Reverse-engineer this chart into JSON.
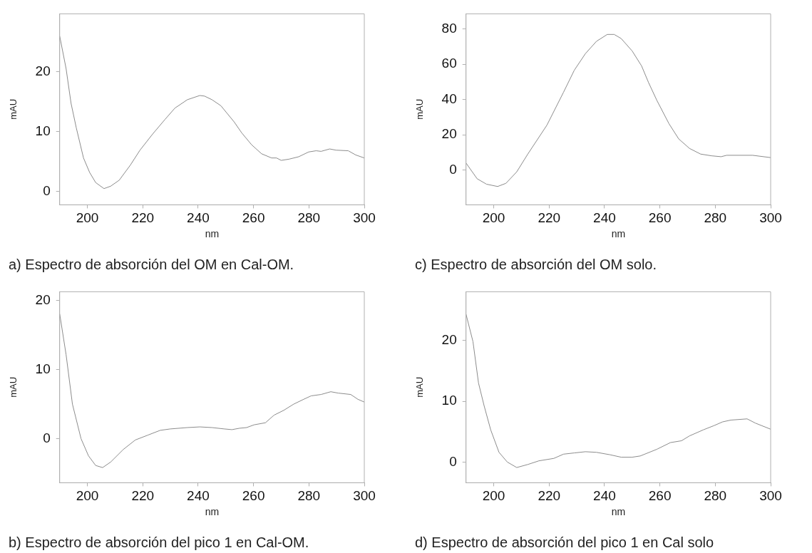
{
  "chart_data": [
    {
      "type": "line",
      "title": "a) Espectro de absorción del OM en Cal-OM.",
      "xlabel": "nm",
      "ylabel": "mAU",
      "xlim": [
        190,
        300
      ],
      "ylim": [
        -2.2,
        29.6
      ],
      "xticks": [
        200,
        220,
        240,
        260,
        280,
        300
      ],
      "yticks": [
        0,
        10,
        20
      ],
      "grid": false,
      "marker": "none",
      "x": [
        190,
        192.3,
        194.1,
        196,
        198.6,
        200.8,
        203,
        206,
        208.4,
        211.5,
        215.5,
        219,
        223.6,
        228,
        231.6,
        236.1,
        240.6,
        242.3,
        245,
        248.2,
        253,
        255.7,
        259.3,
        262.9,
        266.5,
        268.3,
        270,
        272.8,
        276.3,
        279.9,
        282.6,
        284.4,
        287.5,
        289.8,
        294.2,
        296.9,
        300
      ],
      "series": [
        {
          "color": "#8c8c8c",
          "values": [
            25.9,
            20.5,
            14.7,
            10.6,
            5.6,
            3.2,
            1.5,
            0.5,
            0.9,
            1.9,
            4.4,
            6.9,
            9.6,
            12.0,
            13.9,
            15.3,
            16.0,
            15.9,
            15.3,
            14.3,
            11.6,
            9.8,
            7.8,
            6.3,
            5.6,
            5.6,
            5.2,
            5.4,
            5.8,
            6.6,
            6.8,
            6.7,
            7.1,
            6.9,
            6.8,
            6.1,
            5.6
          ]
        }
      ]
    },
    {
      "type": "line",
      "title": "c) Espectro de absorción del OM solo.",
      "xlabel": "nm",
      "ylabel": "mAU",
      "xlim": [
        190,
        300
      ],
      "ylim": [
        -19.8,
        88.6
      ],
      "xticks": [
        200,
        220,
        240,
        260,
        280,
        300
      ],
      "yticks": [
        0,
        20,
        40,
        60,
        80
      ],
      "grid": false,
      "marker": "none",
      "x": [
        190,
        194,
        197.4,
        201.4,
        204.4,
        208.3,
        212.3,
        219.2,
        225.2,
        229.1,
        233.1,
        237.1,
        241,
        243.5,
        246,
        250,
        253.4,
        255.9,
        258.9,
        263.3,
        266.8,
        270.7,
        274.7,
        278.7,
        282.1,
        284.1,
        293.5,
        300
      ],
      "series": [
        {
          "color": "#8c8c8c",
          "values": [
            3.9,
            -5.0,
            -8.1,
            -9.4,
            -7.6,
            -1.1,
            9.0,
            25.4,
            44.1,
            56.6,
            66.0,
            73.0,
            76.9,
            76.9,
            74.6,
            67.5,
            59.0,
            49.6,
            39.5,
            26.2,
            17.6,
            12.2,
            9.0,
            8.0,
            7.5,
            8.3,
            8.3,
            7.0
          ]
        }
      ]
    },
    {
      "type": "line",
      "title": "b) Espectro de absorción del pico 1 en Cal-OM.",
      "xlabel": "nm",
      "ylabel": "mAU",
      "xlim": [
        190,
        300
      ],
      "ylim": [
        -6.4,
        21.3
      ],
      "xticks": [
        200,
        220,
        240,
        260,
        280,
        300
      ],
      "yticks": [
        0,
        10,
        20
      ],
      "grid": false,
      "marker": "none",
      "x": [
        190,
        192.3,
        194.6,
        197.7,
        200.4,
        203,
        205.5,
        208.4,
        212.9,
        217.3,
        221.8,
        226.3,
        229.9,
        236.1,
        240.6,
        245,
        249.5,
        252.2,
        254.9,
        257.5,
        260.2,
        264.3,
        267.4,
        270.9,
        274.5,
        278.1,
        280.8,
        284.4,
        287.9,
        290.6,
        295.1,
        297.7,
        300
      ],
      "series": [
        {
          "color": "#8c8c8c",
          "values": [
            18.1,
            12.2,
            5.0,
            0,
            -2.5,
            -3.9,
            -4.2,
            -3.4,
            -1.6,
            -0.2,
            0.5,
            1.2,
            1.4,
            1.6,
            1.7,
            1.6,
            1.4,
            1.3,
            1.5,
            1.6,
            2.0,
            2.3,
            3.4,
            4.1,
            5.0,
            5.7,
            6.2,
            6.4,
            6.8,
            6.6,
            6.4,
            5.7,
            5.3
          ]
        }
      ]
    },
    {
      "type": "line",
      "title": "d) Espectro de absorción del pico 1 en Cal solo",
      "xlabel": "nm",
      "ylabel": "mAU",
      "xlim": [
        190,
        300
      ],
      "ylim": [
        -3.4,
        28.0
      ],
      "xticks": [
        200,
        220,
        240,
        260,
        280,
        300
      ],
      "yticks": [
        0,
        10,
        20
      ],
      "grid": false,
      "marker": "none",
      "x": [
        190,
        192.5,
        194.5,
        196.5,
        198.9,
        201.9,
        204.9,
        208.3,
        212.3,
        216.3,
        221.7,
        225.2,
        229.1,
        233.1,
        237.1,
        242,
        246,
        250,
        252.9,
        258.9,
        263.8,
        267.8,
        270.7,
        275.7,
        279.6,
        282.6,
        285.6,
        291.5,
        294.5,
        300
      ],
      "series": [
        {
          "color": "#8c8c8c",
          "values": [
            24.3,
            19.8,
            13.0,
            9.3,
            5.3,
            1.6,
            0,
            -0.9,
            -0.4,
            0.2,
            0.6,
            1.3,
            1.5,
            1.7,
            1.6,
            1.2,
            0.8,
            0.8,
            1.0,
            2.1,
            3.2,
            3.5,
            4.3,
            5.3,
            6.0,
            6.6,
            6.9,
            7.1,
            6.4,
            5.4
          ]
        }
      ]
    }
  ]
}
